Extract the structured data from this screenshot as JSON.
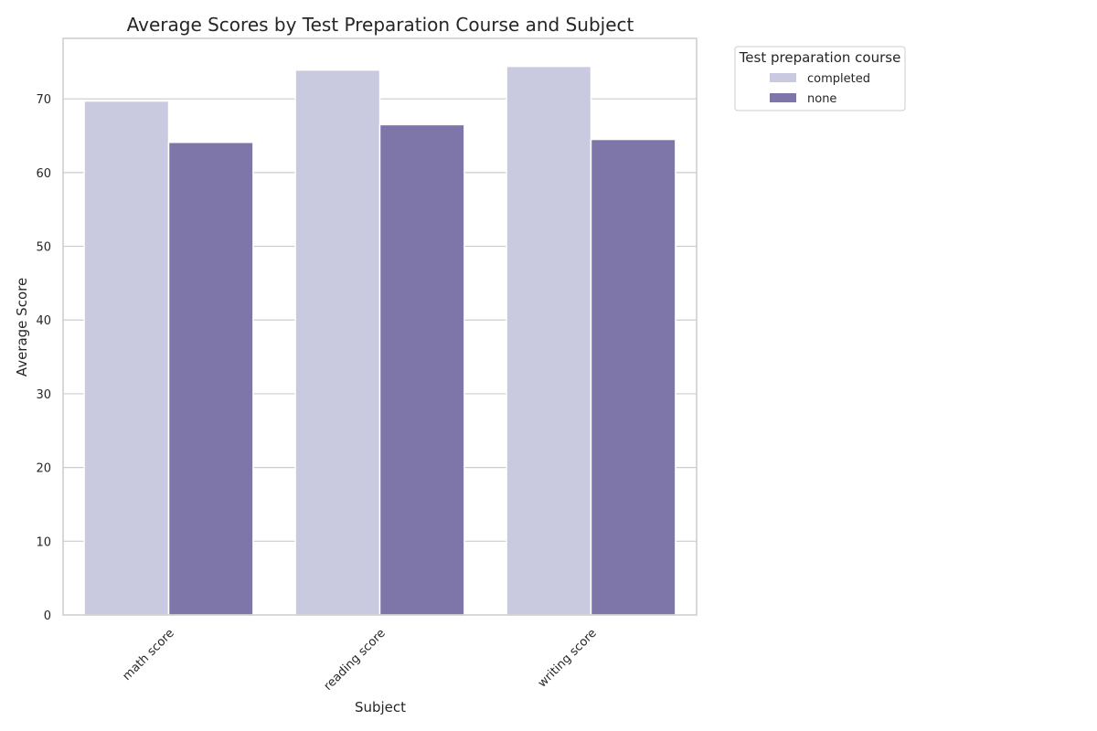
{
  "chart_data": {
    "type": "bar",
    "title": "Average Scores by Test Preparation Course and Subject",
    "xlabel": "Subject",
    "ylabel": "Average Score",
    "categories": [
      "math score",
      "reading score",
      "writing score"
    ],
    "series": [
      {
        "name": "completed",
        "values": [
          69.7,
          73.9,
          74.4
        ],
        "color": "#c9c9e0"
      },
      {
        "name": "none",
        "values": [
          64.1,
          66.5,
          64.5
        ],
        "color": "#7e76a9"
      }
    ],
    "ylim": [
      0,
      78.2
    ],
    "yticks": [
      0,
      10,
      20,
      30,
      40,
      50,
      60,
      70
    ],
    "grid": true,
    "legend": {
      "title": "Test preparation course",
      "placement": "outside-top-right"
    }
  }
}
